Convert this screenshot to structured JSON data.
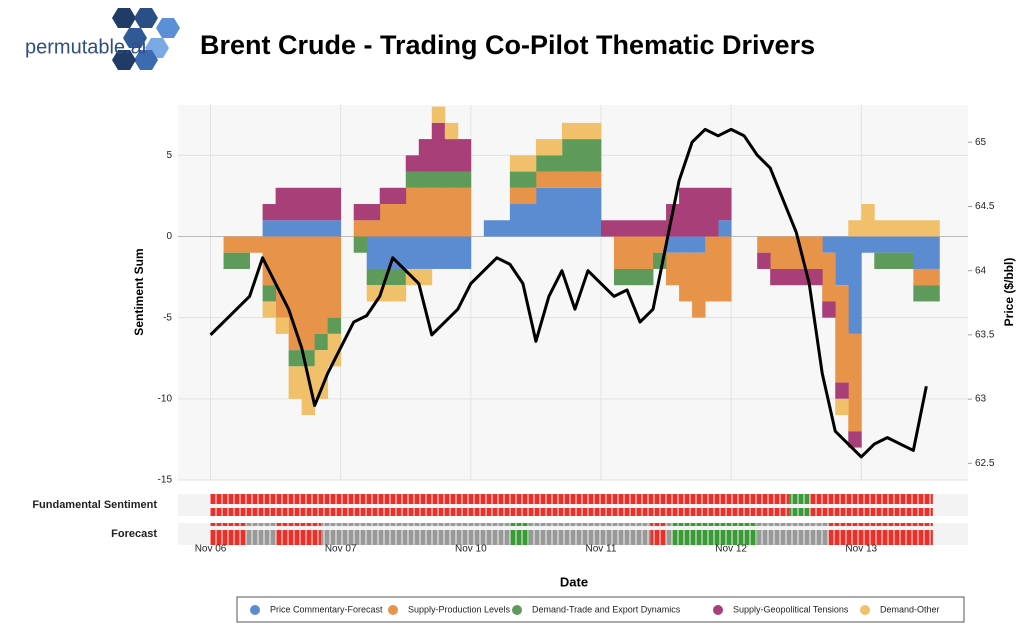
{
  "brand": "permutable.ai",
  "chart_data": {
    "type": "area",
    "stacked": true,
    "title": "Brent Crude - Trading Co-Pilot Thematic Drivers",
    "x_label": "Date",
    "y_label": "Sentiment Sum",
    "y2_label": "Price ($/bbl)",
    "x": [
      0,
      0.1,
      0.2,
      0.3,
      0.4,
      0.5,
      0.6,
      0.7,
      0.8,
      0.9,
      1,
      1.1,
      1.2,
      1.3,
      1.4,
      1.5,
      1.6,
      1.7,
      1.8,
      1.9,
      2,
      2.1,
      2.2,
      2.3,
      2.4,
      2.5,
      2.6,
      2.7,
      2.8,
      2.9,
      3,
      3.1,
      3.2,
      3.3,
      3.4,
      3.5,
      3.6,
      3.7,
      3.8,
      3.9,
      4,
      4.1,
      4.2,
      4.3,
      4.4,
      4.5,
      4.6,
      4.7,
      4.8,
      4.9,
      5,
      5.1,
      5.2,
      5.3,
      5.4,
      5.5
    ],
    "xlim": [
      -0.25,
      5.82
    ],
    "xticks": [
      {
        "value": 0,
        "label": "Nov 06"
      },
      {
        "value": 1,
        "label": "Nov 07"
      },
      {
        "value": 2,
        "label": "Nov 10"
      },
      {
        "value": 3,
        "label": "Nov 11"
      },
      {
        "value": 4,
        "label": "Nov 12"
      },
      {
        "value": 5,
        "label": "Nov 13"
      }
    ],
    "ylim": [
      -15,
      8.1
    ],
    "yticks": [
      -15,
      -10,
      -5,
      0,
      5
    ],
    "y2lim": [
      62.37,
      65.29
    ],
    "y2ticks": [
      62.5,
      63,
      63.5,
      64,
      64.5,
      65
    ],
    "grid": true,
    "legend": "bottom",
    "series": [
      {
        "name": "Price Commentary-Forecast",
        "color": "#5b8bd1",
        "values": [
          0,
          0,
          0,
          0,
          1,
          1,
          1,
          1,
          1,
          1,
          0,
          0,
          -2,
          -2,
          -2,
          -2,
          -2,
          -2,
          -2,
          -2,
          0,
          1,
          1,
          2,
          2,
          3,
          3,
          3,
          3,
          3,
          0,
          0,
          0,
          0,
          0,
          -1,
          -1,
          -1,
          0,
          1,
          0,
          0,
          0,
          0,
          0,
          0,
          0,
          -1,
          -3,
          -6,
          -1,
          -1,
          -1,
          -1,
          -2,
          -2
        ]
      },
      {
        "name": "Supply-Production Levels",
        "color": "#e8934a",
        "values": [
          0,
          -1,
          -1,
          -1,
          -3,
          -5,
          -7,
          -7,
          -6,
          -5,
          0,
          1,
          1,
          2,
          2,
          3,
          3,
          3,
          3,
          3,
          0,
          0,
          0,
          1,
          1,
          1,
          1,
          1,
          1,
          1,
          0,
          -2,
          -2,
          -2,
          -1,
          -2,
          -3,
          -4,
          -4,
          -4,
          0,
          0,
          -1,
          -2,
          -2,
          -2,
          -2,
          -3,
          -6,
          -6,
          0,
          0,
          0,
          0,
          -1,
          -1
        ]
      },
      {
        "name": "Demand-Trade and Export Dynamics",
        "color": "#5e9a5a",
        "values": [
          0,
          -1,
          -1,
          0,
          -1,
          0,
          -1,
          -1,
          -1,
          -1,
          0,
          -1,
          -1,
          -1,
          -1,
          1,
          1,
          1,
          1,
          1,
          0,
          0,
          0,
          1,
          1,
          1,
          1,
          2,
          2,
          2,
          0,
          -1,
          -1,
          -1,
          -1,
          0,
          0,
          0,
          0,
          0,
          0,
          0,
          0,
          0,
          0,
          0,
          0,
          0,
          0,
          0,
          0,
          -1,
          -1,
          -1,
          -1,
          -1
        ]
      },
      {
        "name": "Supply-Geopolitical Tensions",
        "color": "#a83f78",
        "values": [
          0,
          0,
          0,
          0,
          1,
          2,
          2,
          2,
          2,
          2,
          0,
          1,
          1,
          1,
          1,
          1,
          2,
          3,
          2,
          2,
          0,
          0,
          0,
          0,
          0,
          0,
          0,
          0,
          0,
          0,
          1,
          1,
          1,
          1,
          1,
          2,
          3,
          3,
          3,
          2,
          0,
          0,
          -1,
          -1,
          -1,
          -1,
          -1,
          -1,
          -1,
          -1,
          0,
          0,
          0,
          0,
          0,
          0
        ]
      },
      {
        "name": "Demand-Other",
        "color": "#f1c06a",
        "values": [
          0,
          0,
          0,
          0,
          -1,
          -1,
          -2,
          -3,
          -3,
          -2,
          0,
          0,
          -1,
          -1,
          -1,
          -1,
          -1,
          1,
          1,
          0,
          0,
          0,
          0,
          1,
          1,
          1,
          1,
          1,
          1,
          1,
          0,
          0,
          0,
          0,
          0,
          0,
          0,
          0,
          0,
          0,
          0,
          0,
          0,
          0,
          0,
          0,
          0,
          0,
          -1,
          1,
          2,
          1,
          1,
          1,
          1,
          1
        ]
      },
      {
        "type": "line",
        "axis": "y2",
        "color": "#000000",
        "values": [
          63.5,
          63.6,
          63.7,
          63.8,
          64.1,
          63.9,
          63.7,
          63.4,
          62.95,
          63.2,
          63.4,
          63.6,
          63.65,
          63.8,
          64.1,
          64.0,
          63.9,
          63.5,
          63.6,
          63.7,
          63.9,
          64.0,
          64.1,
          64.05,
          63.9,
          63.45,
          63.8,
          64.0,
          63.7,
          64.0,
          63.9,
          63.8,
          63.85,
          63.6,
          63.7,
          64.2,
          64.7,
          65.0,
          65.1,
          65.05,
          65.1,
          65.05,
          64.9,
          64.8,
          64.55,
          64.3,
          63.9,
          63.2,
          62.75,
          62.65,
          62.55,
          62.65,
          62.7,
          62.65,
          62.6,
          63.1
        ]
      }
    ],
    "signal_panels": [
      {
        "label": "Fundamental Sentiment",
        "runs": [
          {
            "start": 0,
            "end": 4.45,
            "color": "#e8312a"
          },
          {
            "start": 4.45,
            "end": 4.6,
            "color": "#3a9a35"
          },
          {
            "start": 4.6,
            "end": 5.55,
            "color": "#e8312a"
          }
        ]
      },
      {
        "label": "Forecast",
        "runs": [
          {
            "start": 0,
            "end": 0.27,
            "color": "#e8312a"
          },
          {
            "start": 0.27,
            "end": 0.5,
            "color": "#999999"
          },
          {
            "start": 0.5,
            "end": 0.85,
            "color": "#e8312a"
          },
          {
            "start": 0.85,
            "end": 2.3,
            "color": "#999999"
          },
          {
            "start": 2.3,
            "end": 2.45,
            "color": "#3a9a35"
          },
          {
            "start": 2.45,
            "end": 3.38,
            "color": "#999999"
          },
          {
            "start": 3.38,
            "end": 3.5,
            "color": "#e8312a"
          },
          {
            "start": 3.5,
            "end": 3.55,
            "color": "#999999"
          },
          {
            "start": 3.55,
            "end": 4.2,
            "color": "#3a9a35"
          },
          {
            "start": 4.2,
            "end": 4.75,
            "color": "#999999"
          },
          {
            "start": 4.75,
            "end": 5.55,
            "color": "#e8312a"
          }
        ]
      }
    ]
  }
}
